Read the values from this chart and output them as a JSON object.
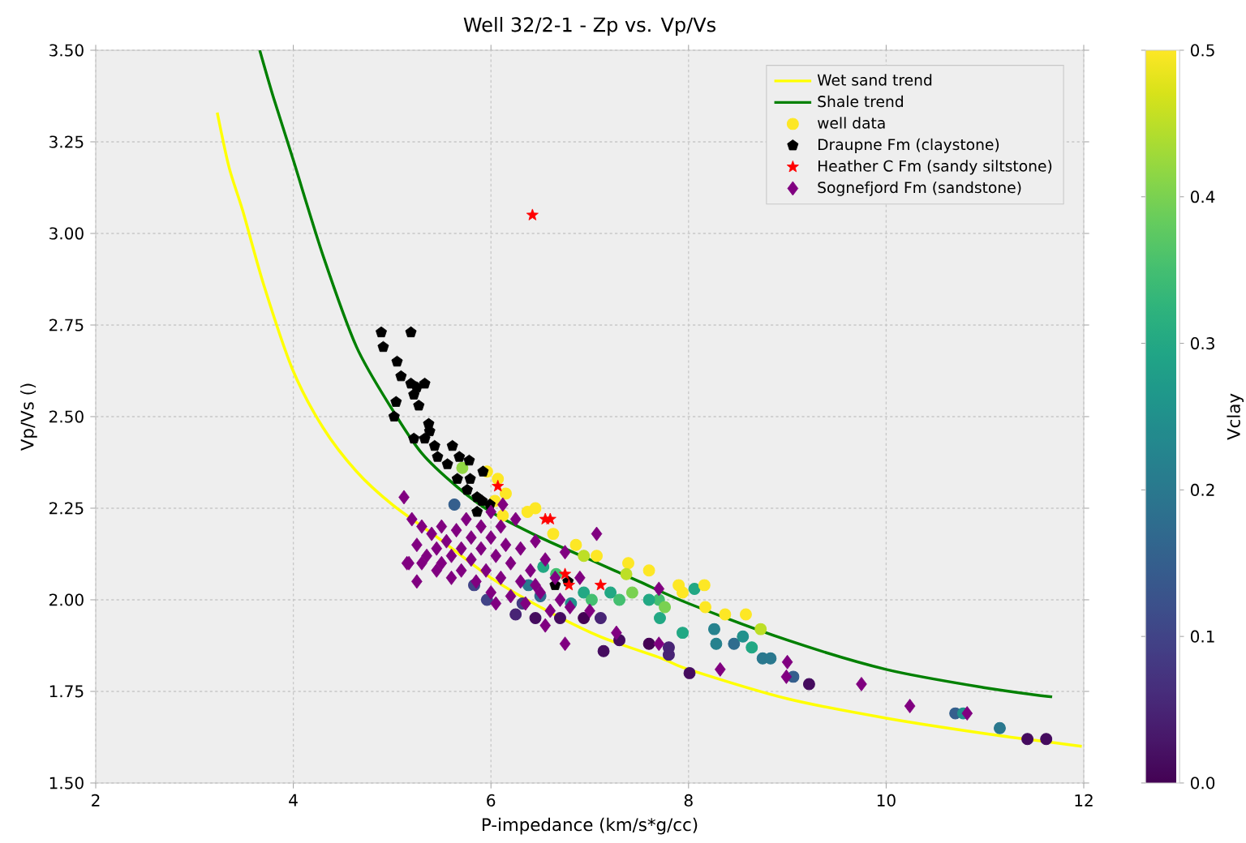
{
  "chart_data": {
    "type": "scatter",
    "title": "Well 32/2-1 - Zp vs. Vp/Vs",
    "xlabel": "P-impedance (km/s*g/cc)",
    "ylabel": "Vp/Vs ()",
    "clabel": "Vclay",
    "xlim": [
      2,
      12
    ],
    "ylim": [
      1.5,
      3.5
    ],
    "xticks": [
      2,
      4,
      6,
      8,
      10,
      12
    ],
    "yticks": [
      {
        "value": 1.5,
        "label": "1.50"
      },
      {
        "value": 1.75,
        "label": "1.75"
      },
      {
        "value": 2.0,
        "label": "2.00"
      },
      {
        "value": 2.25,
        "label": "2.25"
      },
      {
        "value": 2.5,
        "label": "2.50"
      },
      {
        "value": 2.75,
        "label": "2.75"
      },
      {
        "value": 3.0,
        "label": "3.00"
      },
      {
        "value": 3.25,
        "label": "3.25"
      },
      {
        "value": 3.5,
        "label": "3.50"
      }
    ],
    "clim": [
      0,
      0.5
    ],
    "cticks": [
      {
        "value": 0,
        "label": "0.0"
      },
      {
        "value": 0.1,
        "label": "0.1"
      },
      {
        "value": 0.2,
        "label": "0.2"
      },
      {
        "value": 0.3,
        "label": "0.3"
      },
      {
        "value": 0.4,
        "label": "0.4"
      },
      {
        "value": 0.5,
        "label": "0.5"
      }
    ],
    "grid": true,
    "legend": "top right",
    "series": [
      {
        "name": "Wet sand trend",
        "type": "line",
        "color": "#ffff00",
        "marker": "none",
        "x": [
          3.23,
          3.35,
          3.49,
          3.7,
          3.99,
          4.3,
          4.64,
          5.0,
          5.46,
          6.0,
          6.5,
          7.1,
          7.73,
          8.0,
          9.0,
          10.0,
          11.0,
          11.98
        ],
        "values": [
          3.33,
          3.18,
          3.06,
          2.86,
          2.63,
          2.47,
          2.35,
          2.26,
          2.17,
          2.06,
          1.98,
          1.9,
          1.84,
          1.81,
          1.73,
          1.677,
          1.635,
          1.6
        ]
      },
      {
        "name": "Shale trend",
        "type": "line",
        "color": "#008000",
        "marker": "none",
        "x": [
          3.66,
          3.8,
          4.0,
          4.3,
          4.64,
          5.0,
          5.3,
          5.65,
          6.0,
          6.5,
          7.0,
          7.5,
          8.0,
          9.0,
          10.0,
          11.0,
          11.68
        ],
        "values": [
          3.5,
          3.37,
          3.2,
          2.94,
          2.69,
          2.52,
          2.4,
          2.31,
          2.24,
          2.17,
          2.11,
          2.05,
          1.99,
          1.89,
          1.81,
          1.76,
          1.735
        ]
      },
      {
        "name": "well data",
        "marker": "circle",
        "x": [
          7.6,
          7.9,
          7.94,
          8.06,
          8.16,
          8.17,
          8.37,
          8.58,
          8.73,
          8.26,
          8.28,
          8.46,
          8.55,
          8.64,
          8.75,
          8.83,
          7.94,
          7.6,
          7.8,
          7.8,
          8.01,
          9.06,
          9.22,
          10.7,
          10.78,
          11.15,
          11.43,
          11.62,
          7.7,
          7.6,
          7.71,
          7.76,
          5.96,
          6.07,
          6.15,
          6.04,
          6.12,
          6.37,
          6.45,
          6.63,
          6.86,
          6.94,
          7.07,
          7.39,
          5.71,
          5.63,
          6.53,
          6.66,
          6.38,
          6.5,
          6.81,
          6.94,
          7.02,
          7.21,
          7.3,
          7.43,
          7.37,
          6.25,
          6.45,
          6.7,
          6.32,
          5.96,
          5.83,
          7.11,
          7.3,
          7.14,
          6.94
        ],
        "values": [
          2.08,
          2.04,
          2.02,
          2.03,
          2.04,
          1.98,
          1.96,
          1.96,
          1.92,
          1.92,
          1.88,
          1.88,
          1.9,
          1.87,
          1.84,
          1.84,
          1.91,
          1.88,
          1.85,
          1.87,
          1.8,
          1.79,
          1.77,
          1.69,
          1.69,
          1.65,
          1.62,
          1.62,
          2.0,
          2.0,
          1.95,
          1.98,
          2.35,
          2.33,
          2.29,
          2.27,
          2.23,
          2.24,
          2.25,
          2.18,
          2.15,
          2.12,
          2.12,
          2.1,
          2.36,
          2.26,
          2.09,
          2.07,
          2.04,
          2.01,
          1.99,
          2.02,
          2.0,
          2.02,
          2.0,
          2.02,
          2.07,
          1.96,
          1.95,
          1.95,
          1.99,
          2.0,
          2.04,
          1.95,
          1.89,
          1.86,
          1.95
        ],
        "colors": [
          "#fde725",
          "#fde725",
          "#fde725",
          "#22a884",
          "#fde725",
          "#fde725",
          "#fde725",
          "#fde725",
          "#bddf26",
          "#26828e",
          "#26828e",
          "#2f6c8e",
          "#21918c",
          "#22a884",
          "#2a788e",
          "#2a788e",
          "#22a884",
          "#440154",
          "#482475",
          "#482475",
          "#450b5e",
          "#355f8d",
          "#450b5e",
          "#355f8d",
          "#21918c",
          "#2a788e",
          "#450b5e",
          "#450b5e",
          "#44bf70",
          "#22a884",
          "#22a884",
          "#7ad151",
          "#fde725",
          "#fde725",
          "#fde725",
          "#fde725",
          "#fde725",
          "#fde725",
          "#fde725",
          "#fde725",
          "#fde725",
          "#bddf26",
          "#fde725",
          "#fde725",
          "#90d743",
          "#355f8d",
          "#22a884",
          "#44bf70",
          "#2a788e",
          "#2f6c8e",
          "#21918c",
          "#22a884",
          "#44bf70",
          "#22a884",
          "#44bf70",
          "#7ad151",
          "#bddf26",
          "#482475",
          "#450b5e",
          "#450b5e",
          "#443a83",
          "#414487",
          "#414487",
          "#482475",
          "#450b5e",
          "#450b5e",
          "#440154"
        ],
        "cvalues": [
          0.5,
          0.5,
          0.5,
          0.3,
          0.5,
          0.5,
          0.5,
          0.5,
          0.45,
          0.22,
          0.22,
          0.18,
          0.25,
          0.3,
          0.2,
          0.2,
          0.3,
          0.0,
          0.05,
          0.05,
          0.02,
          0.15,
          0.02,
          0.15,
          0.25,
          0.2,
          0.02,
          0.02,
          0.35,
          0.3,
          0.3,
          0.4,
          0.5,
          0.5,
          0.5,
          0.5,
          0.5,
          0.5,
          0.5,
          0.5,
          0.5,
          0.45,
          0.5,
          0.5,
          0.42,
          0.15,
          0.3,
          0.35,
          0.2,
          0.18,
          0.25,
          0.3,
          0.35,
          0.3,
          0.35,
          0.4,
          0.45,
          0.05,
          0.02,
          0.02,
          0.08,
          0.1,
          0.1,
          0.05,
          0.02,
          0.02,
          0.0
        ]
      },
      {
        "name": "Draupne Fm (claystone)",
        "color": "#000000",
        "x": [
          4.89,
          4.91,
          5.19,
          5.05,
          5.09,
          5.19,
          5.33,
          5.25,
          5.22,
          5.27,
          5.04,
          5.02,
          5.37,
          5.38,
          5.22,
          5.33,
          5.43,
          5.61,
          5.68,
          5.46,
          5.56,
          5.78,
          5.79,
          5.66,
          5.92,
          5.76,
          5.86,
          5.91,
          5.99,
          6.02,
          6.78,
          6.65,
          5.86
        ],
        "values": [
          2.73,
          2.69,
          2.73,
          2.65,
          2.61,
          2.59,
          2.59,
          2.58,
          2.56,
          2.53,
          2.54,
          2.5,
          2.48,
          2.46,
          2.44,
          2.44,
          2.42,
          2.42,
          2.39,
          2.39,
          2.37,
          2.38,
          2.33,
          2.33,
          2.35,
          2.3,
          2.28,
          2.27,
          2.26,
          null,
          2.05,
          2.04,
          2.24
        ]
      },
      {
        "name": "Heather C Fm (sandy siltstone)",
        "color": "#ff0000",
        "marker": "star",
        "x": [
          6.42,
          6.07,
          6.55,
          6.6,
          6.75,
          6.79,
          7.11
        ],
        "values": [
          3.05,
          2.31,
          2.22,
          2.22,
          2.07,
          2.04,
          2.04
        ]
      },
      {
        "name": "Sognefjord Fm (sandstone)",
        "color": "#800080",
        "marker": "diamond",
        "x": [
          5.2,
          5.3,
          5.25,
          5.35,
          5.4,
          5.45,
          5.5,
          5.5,
          5.55,
          5.6,
          5.6,
          5.65,
          5.7,
          5.7,
          5.75,
          5.8,
          5.8,
          5.85,
          5.9,
          5.9,
          5.95,
          6.0,
          6.0,
          6.0,
          6.05,
          6.1,
          6.1,
          6.15,
          6.2,
          6.2,
          6.25,
          6.3,
          6.3,
          6.35,
          6.4,
          6.45,
          6.5,
          6.55,
          6.6,
          6.65,
          6.7,
          6.8,
          5.45,
          5.3,
          5.15,
          5.25,
          6.12,
          6.05,
          6.45,
          6.75,
          6.9,
          6.55,
          7.0,
          5.12,
          5.17,
          6.75,
          7.07,
          7.27,
          7.7,
          8.32,
          9.0,
          8.99,
          9.75,
          10.24,
          10.82,
          7.7
        ],
        "values": [
          2.22,
          2.2,
          2.15,
          2.12,
          2.18,
          2.14,
          2.1,
          2.2,
          2.16,
          2.12,
          2.06,
          2.19,
          2.14,
          2.08,
          2.22,
          2.17,
          2.11,
          2.05,
          2.2,
          2.14,
          2.08,
          2.24,
          2.17,
          2.02,
          2.12,
          2.2,
          2.06,
          2.15,
          2.01,
          2.1,
          2.22,
          2.05,
          2.14,
          1.99,
          2.08,
          2.16,
          2.02,
          2.11,
          1.97,
          2.06,
          2.0,
          1.98,
          2.08,
          2.1,
          2.1,
          2.05,
          2.26,
          1.99,
          2.04,
          2.13,
          2.06,
          1.93,
          1.97,
          2.28,
          2.1,
          1.88,
          2.18,
          1.91,
          2.03,
          1.81,
          1.83,
          1.79,
          1.77,
          1.71,
          1.69,
          1.88
        ]
      }
    ]
  }
}
